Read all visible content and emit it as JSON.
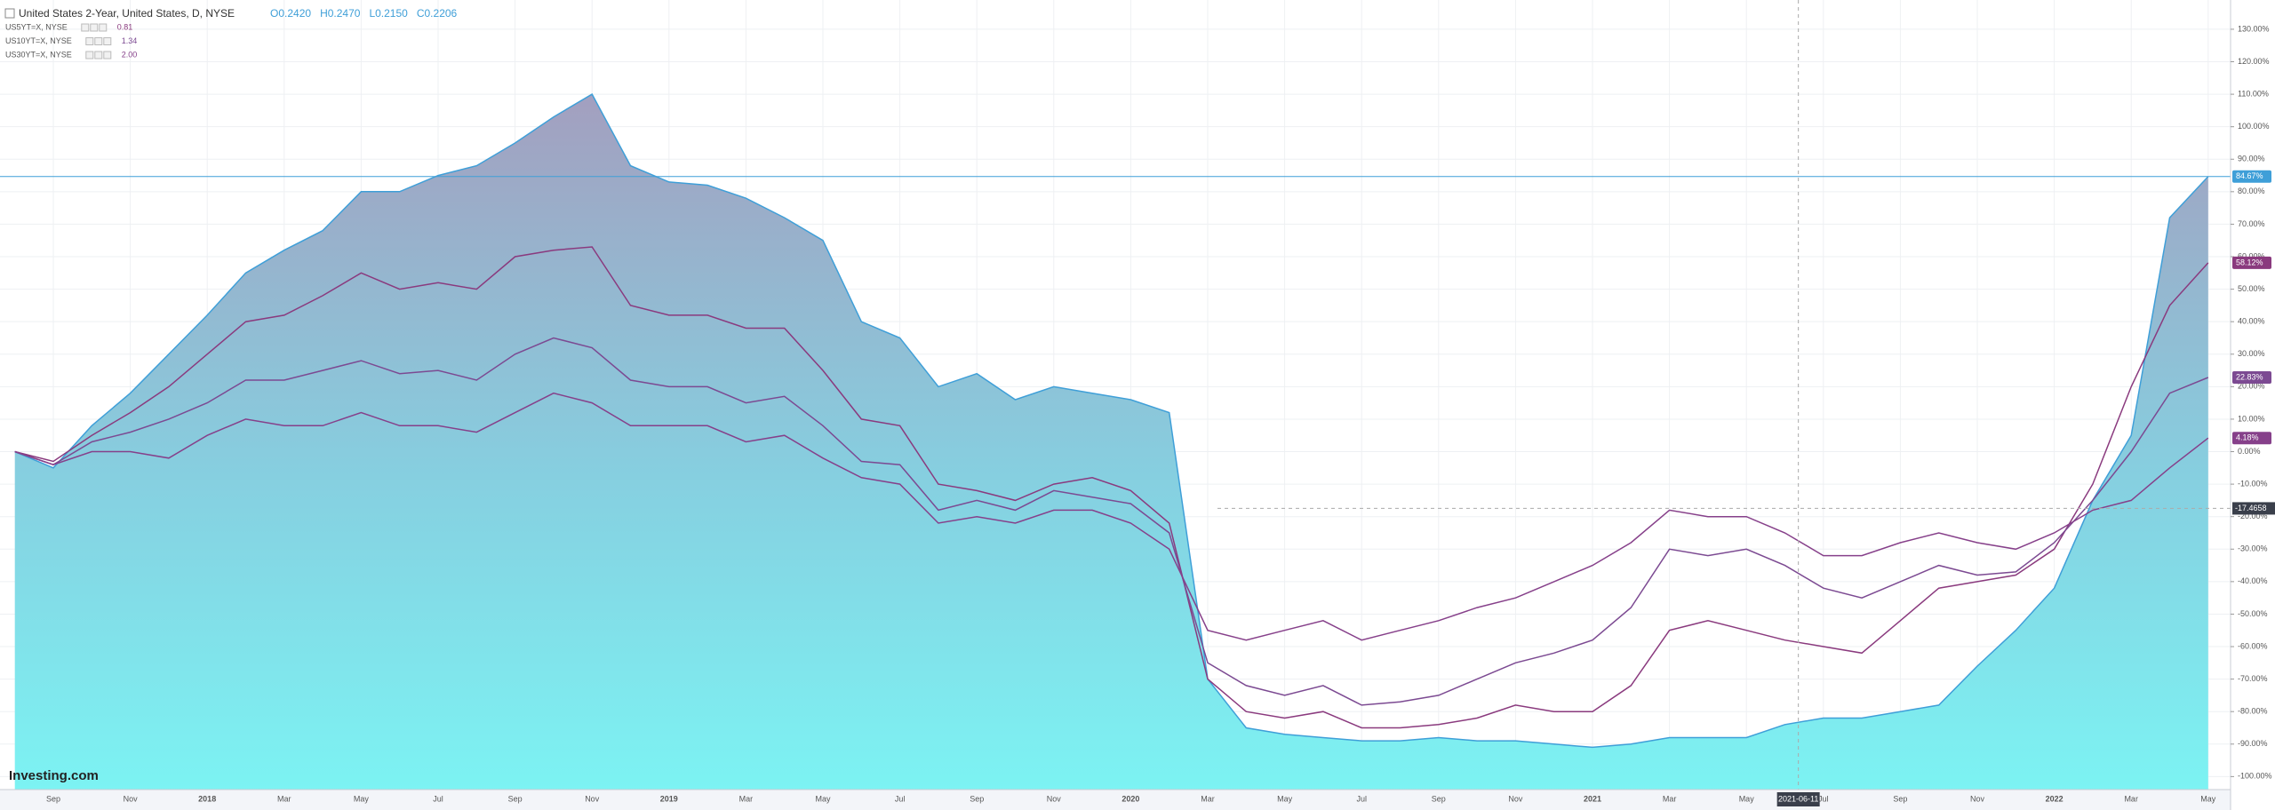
{
  "chart_data": {
    "type": "line",
    "title": "United States 2-Year, United States, D, NYSE",
    "ohlc": [
      "O0.2420",
      "H0.2470",
      "L0.2150",
      "C0.2206"
    ],
    "logo": "Investing.com",
    "categories": [
      null,
      "Sep",
      null,
      "Nov",
      null,
      "2018",
      null,
      "Mar",
      null,
      "May",
      null,
      "Jul",
      null,
      "Sep",
      null,
      "Nov",
      null,
      "2019",
      null,
      "Mar",
      null,
      "May",
      null,
      "Jul",
      null,
      "Sep",
      null,
      "Nov",
      null,
      "2020",
      null,
      "Mar",
      null,
      "May",
      null,
      "Jul",
      null,
      "Sep",
      null,
      "Nov",
      null,
      "2021",
      null,
      "Mar",
      null,
      "May",
      null,
      "Jul",
      null,
      "Sep",
      null,
      "Nov",
      null,
      "2022",
      null,
      "Mar",
      null,
      "May"
    ],
    "series": [
      {
        "name": "United States 2-Year",
        "style": "area",
        "color": "#3f9fd8",
        "last_label": "84.67%",
        "values": [
          0,
          -5,
          8,
          18,
          30,
          42,
          55,
          62,
          68,
          80,
          80,
          85,
          88,
          95,
          103,
          110,
          88,
          83,
          82,
          78,
          72,
          65,
          40,
          35,
          20,
          24,
          16,
          20,
          18,
          16,
          12,
          -70,
          -85,
          -87,
          -88,
          -89,
          -89,
          -88,
          -89,
          -89,
          -90,
          -91,
          -90,
          -88,
          -88,
          -88,
          -84,
          -82,
          -82,
          -80,
          -78,
          -66,
          -55,
          -42,
          -15,
          5,
          72,
          84.67
        ]
      },
      {
        "name": "US5YT=X, NYSE",
        "legend_value": "0.81",
        "color": "#8a3a7e",
        "last_label": "58.12%",
        "values": [
          0,
          -3,
          5,
          12,
          20,
          30,
          40,
          42,
          48,
          55,
          50,
          52,
          50,
          60,
          62,
          63,
          45,
          42,
          42,
          38,
          38,
          25,
          10,
          8,
          -10,
          -12,
          -15,
          -10,
          -8,
          -12,
          -22,
          -70,
          -80,
          -82,
          -80,
          -85,
          -85,
          -84,
          -82,
          -78,
          -80,
          -80,
          -72,
          -55,
          -52,
          -55,
          -58,
          -60,
          -62,
          -52,
          -42,
          -40,
          -38,
          -30,
          -10,
          20,
          45,
          58.12
        ]
      },
      {
        "name": "US10YT=X, NYSE",
        "legend_value": "1.34",
        "color": "#7c4a92",
        "last_label": "22.83%",
        "values": [
          0,
          -4,
          3,
          6,
          10,
          15,
          22,
          22,
          25,
          28,
          24,
          25,
          22,
          30,
          35,
          32,
          22,
          20,
          20,
          15,
          17,
          8,
          -3,
          -4,
          -18,
          -15,
          -18,
          -12,
          -14,
          -16,
          -25,
          -65,
          -72,
          -75,
          -72,
          -78,
          -77,
          -75,
          -70,
          -65,
          -62,
          -58,
          -48,
          -30,
          -32,
          -30,
          -35,
          -42,
          -45,
          -40,
          -35,
          -38,
          -37,
          -28,
          -15,
          0,
          18,
          22.83
        ]
      },
      {
        "name": "US30YT=X, NYSE",
        "legend_value": "2.00",
        "color": "#86408a",
        "last_label": "4.18%",
        "values": [
          0,
          -4,
          0,
          0,
          -2,
          5,
          10,
          8,
          8,
          12,
          8,
          8,
          6,
          12,
          18,
          15,
          8,
          8,
          8,
          3,
          5,
          -2,
          -8,
          -10,
          -22,
          -20,
          -22,
          -18,
          -18,
          -22,
          -30,
          -55,
          -58,
          -55,
          -52,
          -58,
          -55,
          -52,
          -48,
          -45,
          -40,
          -35,
          -28,
          -18,
          -20,
          -20,
          -25,
          -32,
          -32,
          -28,
          -25,
          -28,
          -30,
          -25,
          -18,
          -15,
          -5,
          4.18
        ]
      }
    ],
    "ylim": [
      -104,
      139
    ],
    "yticks": [
      {
        "value": 130,
        "label": "130.00%"
      },
      {
        "value": 120,
        "label": "120.00%"
      },
      {
        "value": 110,
        "label": "110.00%"
      },
      {
        "value": 100,
        "label": "100.00%"
      },
      {
        "value": 90,
        "label": "90.00%"
      },
      {
        "value": 80,
        "label": "80.00%"
      },
      {
        "value": 70,
        "label": "70.00%"
      },
      {
        "value": 60,
        "label": "60.00%"
      },
      {
        "value": 50,
        "label": "50.00%"
      },
      {
        "value": 40,
        "label": "40.00%"
      },
      {
        "value": 30,
        "label": "30.00%"
      },
      {
        "value": 20,
        "label": "20.00%"
      },
      {
        "value": 10,
        "label": "10.00%"
      },
      {
        "value": 0,
        "label": "0.00%"
      },
      {
        "value": -10,
        "label": "-10.00%"
      },
      {
        "value": -20,
        "label": "-20.00%"
      },
      {
        "value": -30,
        "label": "-30.00%"
      },
      {
        "value": -40,
        "label": "-40.00%"
      },
      {
        "value": -50,
        "label": "-50.00%"
      },
      {
        "value": -60,
        "label": "-60.00%"
      },
      {
        "value": -70,
        "label": "-70.00%"
      },
      {
        "value": -80,
        "label": "-80.00%"
      },
      {
        "value": -90,
        "label": "-90.00%"
      },
      {
        "value": -100,
        "label": "-100.00%"
      }
    ],
    "grid": true,
    "crosshair": {
      "y": -17.4658,
      "x_label": "2021-06-11"
    }
  }
}
